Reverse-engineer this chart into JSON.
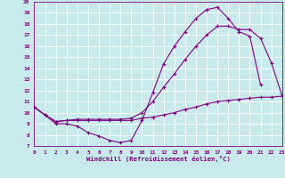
{
  "xlabel": "Windchill (Refroidissement éolien,°C)",
  "bg_color": "#c8eaea",
  "line_color": "#800080",
  "grid_color": "#ffffff",
  "xmin": 0,
  "xmax": 23,
  "ymin": 7,
  "ymax": 20,
  "line1_x": [
    0,
    1,
    2,
    3,
    4,
    5,
    6,
    7,
    8,
    9,
    10,
    11,
    12,
    13,
    14,
    15,
    16,
    17,
    18,
    19,
    20,
    21
  ],
  "line1_y": [
    10.5,
    9.8,
    9.0,
    9.0,
    8.8,
    8.2,
    7.9,
    7.5,
    7.3,
    7.5,
    9.3,
    11.8,
    14.4,
    16.0,
    17.3,
    18.5,
    19.3,
    19.5,
    18.5,
    17.3,
    16.9,
    12.5
  ],
  "line2_x": [
    0,
    1,
    2,
    3,
    4,
    5,
    6,
    7,
    8,
    9,
    10,
    11,
    12,
    13,
    14,
    15,
    16,
    17,
    18,
    19,
    20,
    21,
    22,
    23
  ],
  "line2_y": [
    10.5,
    9.8,
    9.2,
    9.3,
    9.3,
    9.3,
    9.3,
    9.3,
    9.3,
    9.3,
    9.5,
    9.6,
    9.8,
    10.0,
    10.3,
    10.5,
    10.8,
    11.0,
    11.1,
    11.2,
    11.3,
    11.4,
    11.4,
    11.5
  ],
  "line3_x": [
    0,
    1,
    2,
    3,
    4,
    5,
    6,
    7,
    8,
    9,
    10,
    11,
    12,
    13,
    14,
    15,
    16,
    17,
    18,
    19,
    20,
    21,
    22,
    23
  ],
  "line3_y": [
    10.5,
    9.8,
    9.2,
    9.3,
    9.4,
    9.4,
    9.4,
    9.4,
    9.4,
    9.5,
    10.0,
    11.0,
    12.3,
    13.5,
    14.8,
    16.0,
    17.0,
    17.8,
    17.8,
    17.5,
    17.5,
    16.7,
    14.5,
    11.5
  ]
}
